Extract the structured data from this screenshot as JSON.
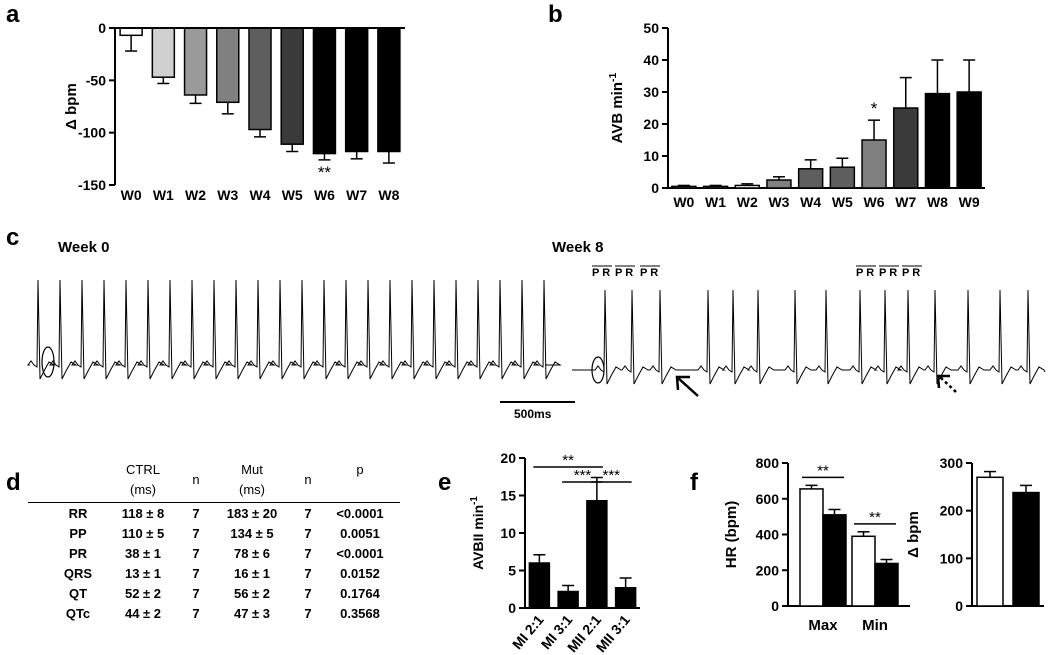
{
  "panel_letters": [
    "a",
    "b",
    "c",
    "d",
    "e",
    "f"
  ],
  "colors": {
    "open": "#ffffff",
    "filled": "#000000",
    "axis": "#000000"
  },
  "chart_data": [
    {
      "panel": "a",
      "type": "bar",
      "categories": [
        "W0",
        "W1",
        "W2",
        "W3",
        "W4",
        "W5",
        "W6",
        "W7",
        "W8"
      ],
      "values": [
        -7,
        -47,
        -64,
        -71,
        -97,
        -111,
        -120,
        -118,
        -118
      ],
      "errors": [
        15,
        6,
        8,
        11,
        7,
        7,
        6,
        7,
        11
      ],
      "fills": [
        "#ffffff",
        "#d0d0d0",
        "#9a9a9a",
        "#808080",
        "#5e5e5e",
        "#3a3a3a",
        "#000000",
        "#000000",
        "#000000"
      ],
      "ylabel": "Δ bpm",
      "ylim": [
        -150,
        0
      ],
      "yticks": [
        0,
        -50,
        -100,
        -150
      ],
      "annotations": [
        {
          "category": "W6",
          "text": "**"
        }
      ]
    },
    {
      "panel": "b",
      "type": "bar",
      "categories": [
        "W0",
        "W1",
        "W2",
        "W3",
        "W4",
        "W5",
        "W6",
        "W7",
        "W8",
        "W9"
      ],
      "values": [
        0.5,
        0.5,
        0.8,
        2.5,
        6,
        6.5,
        15,
        25,
        29.5,
        30
      ],
      "errors": [
        0.3,
        0.3,
        0.5,
        1,
        2.8,
        2.8,
        6.2,
        9.5,
        10.5,
        10
      ],
      "fills": [
        "#ffffff",
        "#ffffff",
        "#ffffff",
        "#808080",
        "#5e5e5e",
        "#5e5e5e",
        "#808080",
        "#3a3a3a",
        "#000000",
        "#000000"
      ],
      "ylabel": "AVB min",
      "ylabel_sup": "-1",
      "ylim": [
        0,
        50
      ],
      "yticks": [
        0,
        10,
        20,
        30,
        40,
        50
      ],
      "annotations": [
        {
          "category": "W6",
          "text": "*"
        }
      ]
    },
    {
      "panel": "e",
      "type": "bar",
      "categories": [
        "MI 2:1",
        "MI 3:1",
        "MII 2:1",
        "MII 3:1"
      ],
      "values": [
        6,
        2.2,
        14.3,
        2.7
      ],
      "errors": [
        1.1,
        0.8,
        3.1,
        1.3
      ],
      "ylabel": "AVBII min",
      "ylabel_sup": "-1",
      "ylim": [
        0,
        20
      ],
      "yticks": [
        0,
        5,
        10,
        15,
        20
      ],
      "brackets": [
        {
          "from": 0,
          "to": 2,
          "level": 18.8,
          "text": "**"
        },
        {
          "from": 1,
          "to": 2,
          "level": 16.8,
          "text": "***"
        },
        {
          "from": 2,
          "to": 3,
          "level": 16.8,
          "text": "***"
        }
      ]
    },
    {
      "panel": "f-left",
      "type": "bar",
      "categories": [
        "Max",
        "Min"
      ],
      "series": [
        {
          "values": [
            655,
            390
          ],
          "errors": [
            20,
            25
          ],
          "fill": "#ffffff"
        },
        {
          "values": [
            510,
            238
          ],
          "errors": [
            30,
            22
          ],
          "fill": "#000000"
        }
      ],
      "ylabel": "HR (bpm)",
      "ylim": [
        0,
        800
      ],
      "yticks": [
        0,
        200,
        400,
        600,
        800
      ],
      "annotations": [
        {
          "category": "Max",
          "text": "**"
        },
        {
          "category": "Min",
          "text": "**"
        }
      ]
    },
    {
      "panel": "f-right",
      "type": "bar",
      "categories": [
        "",
        ""
      ],
      "values": [
        270,
        238
      ],
      "errors": [
        12,
        15
      ],
      "fills": [
        "#ffffff",
        "#000000"
      ],
      "ylabel": "Δ bpm",
      "ylim": [
        0,
        300
      ],
      "yticks": [
        0,
        100,
        200,
        300
      ]
    }
  ],
  "ecg": {
    "left_title": "Week 0",
    "right_title": "Week 8",
    "pr_marks": [
      "P R",
      "P R",
      "P R",
      "P R",
      "P R",
      "P R"
    ],
    "scale_label": "500ms"
  },
  "table": {
    "headers": [
      "CTRL",
      "n",
      "Mut",
      "n",
      "p"
    ],
    "subheaders": [
      "(ms)",
      "",
      "(ms)",
      "",
      ""
    ],
    "rows": [
      {
        "label": "RR",
        "ctrl": "118 ± 8",
        "n1": "7",
        "mut": "183 ± 20",
        "n2": "7",
        "p": "<0.0001"
      },
      {
        "label": "PP",
        "ctrl": "110 ± 5",
        "n1": "7",
        "mut": "134 ± 5",
        "n2": "7",
        "p": "0.0051"
      },
      {
        "label": "PR",
        "ctrl": "38 ± 1",
        "n1": "7",
        "mut": "78 ± 6",
        "n2": "7",
        "p": "<0.0001"
      },
      {
        "label": "QRS",
        "ctrl": "13 ± 1",
        "n1": "7",
        "mut": "16 ± 1",
        "n2": "7",
        "p": "0.0152"
      },
      {
        "label": "QT",
        "ctrl": "52 ± 2",
        "n1": "7",
        "mut": "56 ± 2",
        "n2": "7",
        "p": "0.1764"
      },
      {
        "label": "QTc",
        "ctrl": "44 ± 2",
        "n1": "7",
        "mut": "47 ± 3",
        "n2": "7",
        "p": "0.3568"
      }
    ]
  }
}
